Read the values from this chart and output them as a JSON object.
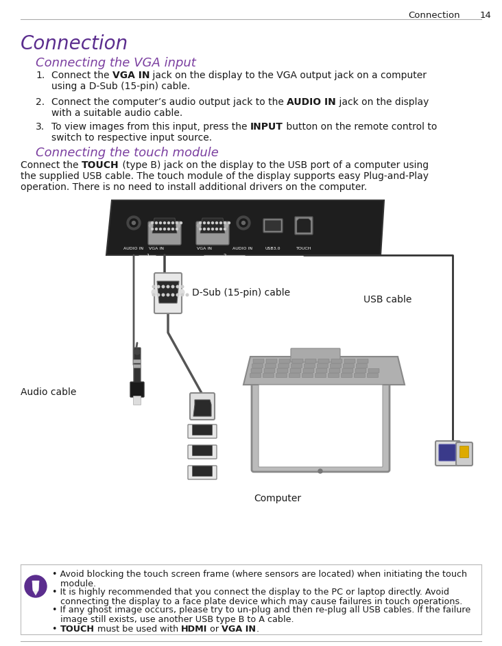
{
  "page_title": "Connection",
  "page_number": "14",
  "header_line_color": "#aaaaaa",
  "main_title": "Connection",
  "main_title_color": "#5b2d8e",
  "main_title_size": 20,
  "section1_title": "Connecting the VGA input",
  "section1_title_color": "#7b3fa0",
  "section1_title_size": 13,
  "item1_normal1": "Connect the ",
  "item1_bold": "VGA IN",
  "item1_normal2": " jack on the display to the VGA output jack on a computer",
  "item1_line2": "using a D-Sub (15-pin) cable.",
  "item2_normal1": "Connect the computer’s audio output jack to the ",
  "item2_bold": "AUDIO IN",
  "item2_normal2": " jack on the display",
  "item2_line2": "with a suitable audio cable.",
  "item3_normal1": "To view images from this input, press the ",
  "item3_bold": "INPUT",
  "item3_normal2": " button on the remote control to",
  "item3_line2": "switch to respective input source.",
  "section2_title": "Connecting the touch module",
  "section2_title_color": "#7b3fa0",
  "section2_title_size": 13,
  "s2_normal1": "Connect the ",
  "s2_bold": "TOUCH",
  "s2_normal2": " (type B) jack on the display to the USB port of a computer using",
  "s2_line2": "the supplied USB cable. The touch module of the display supports easy Plug-and-Play",
  "s2_line3": "operation. There is no need to install additional drivers on the computer.",
  "label_dsub": "D-Sub (15-pin) cable",
  "label_usb": "USB cable",
  "label_audio": "Audio cable",
  "label_computer": "Computer",
  "note_icon_color": "#5b2d8e",
  "note_border_color": "#bbbbbb",
  "note_bg_color": "#ffffff",
  "n1": "• Avoid blocking the touch screen frame (where sensors are located) when initiating the touch",
  "n1b": "   module.",
  "n2": "• It is highly recommended that you connect the display to the PC or laptop directly. Avoid",
  "n2b": "   connecting the display to a face plate device which may cause failures in touch operations.",
  "n3": "• If any ghost image occurs, please try to un-plug and then re-plug all USB cables. If the failure",
  "n3b": "   image still exists, use another USB type B to A cable.",
  "n4_pre": "• ",
  "n4_b1": "TOUCH",
  "n4_m": " must be used with ",
  "n4_b2": "HDMI",
  "n4_m2": " or ",
  "n4_b3": "VGA IN",
  "n4_end": ".",
  "bg_color": "#ffffff",
  "text_color": "#1a1a1a",
  "body_fontsize": 10.0,
  "note_fontsize": 9.2,
  "panel_color": "#1e1e1e",
  "panel_edge_color": "#333333"
}
